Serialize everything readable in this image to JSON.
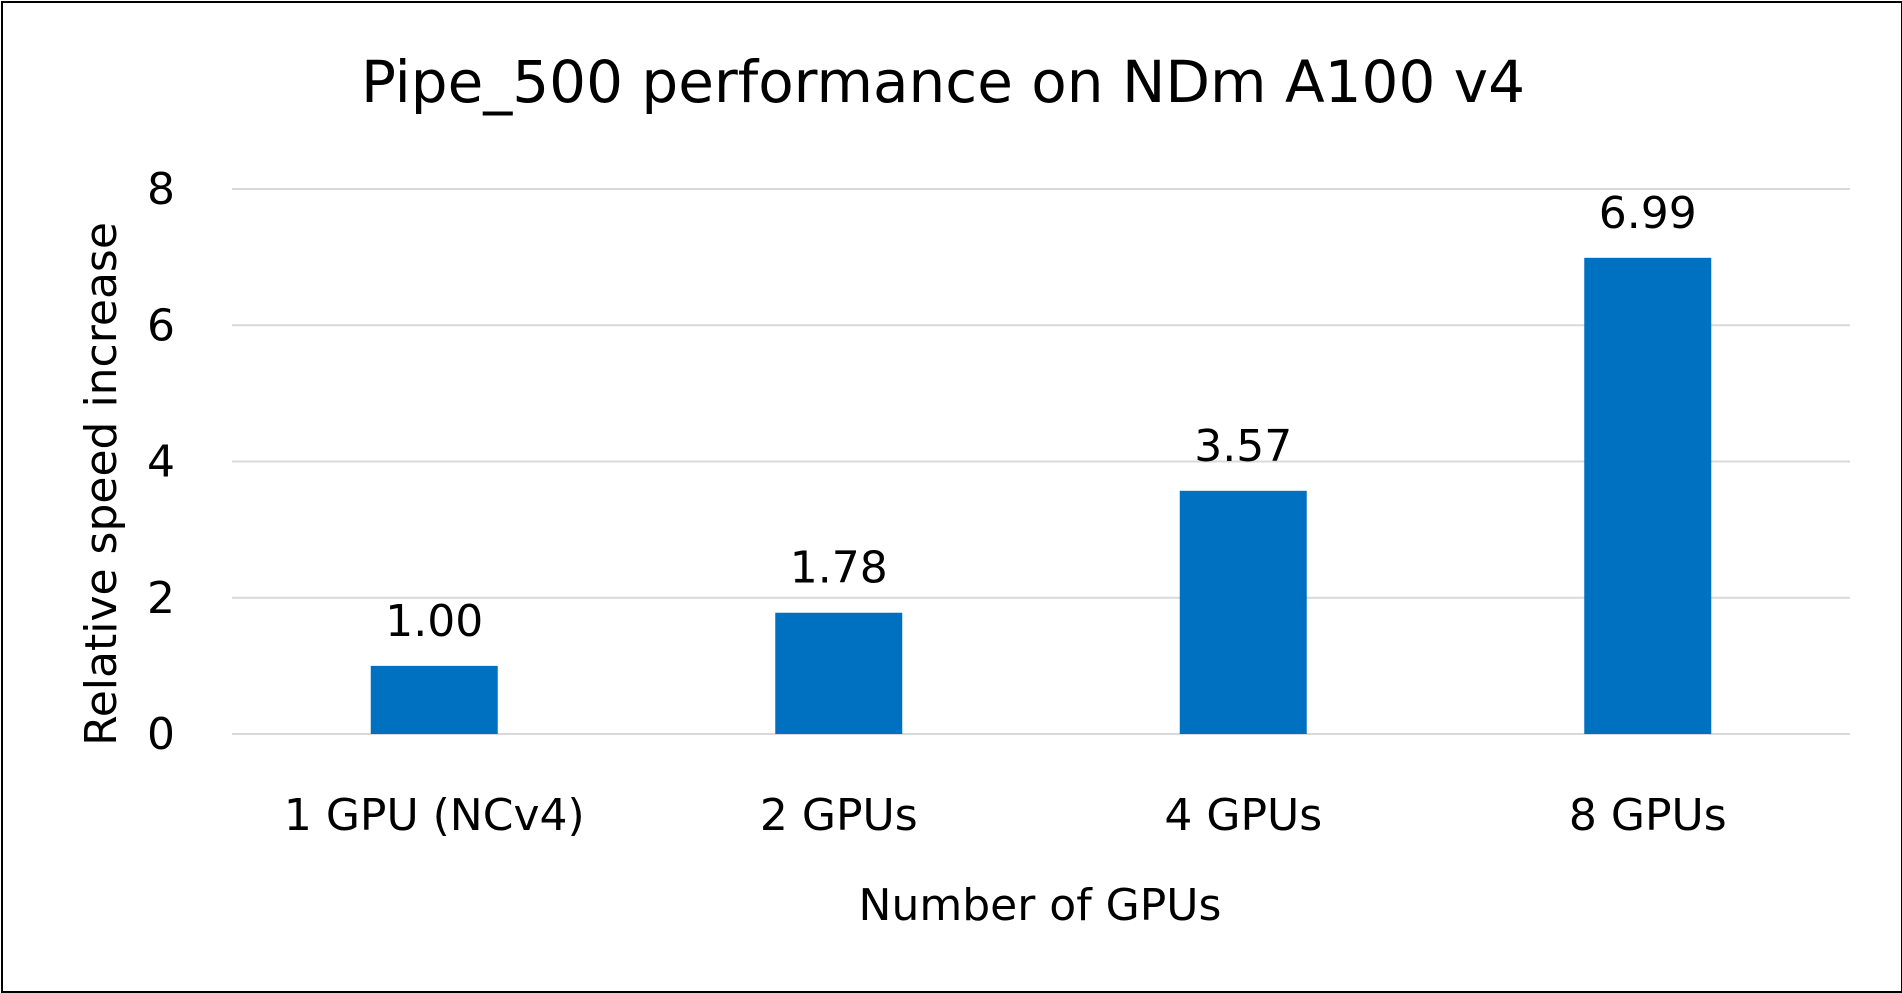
{
  "chart_data": {
    "type": "bar",
    "title": "Pipe_500 performance on NDm A100 v4",
    "xlabel": "Number of GPUs",
    "ylabel": "Relative speed increase",
    "categories": [
      "1 GPU (NCv4)",
      "2 GPUs",
      "4 GPUs",
      "8 GPUs"
    ],
    "values": [
      1.0,
      1.78,
      3.57,
      6.99
    ],
    "value_labels": [
      "1.00",
      "1.78",
      "3.57",
      "6.99"
    ],
    "ylim": [
      0,
      8
    ],
    "yticks": [
      "0",
      "2",
      "4",
      "6",
      "8"
    ],
    "grid": true,
    "legend": "none",
    "colors": {
      "bar": "#0070C0",
      "grid": "#D9D9D9",
      "text": "#000000"
    }
  }
}
